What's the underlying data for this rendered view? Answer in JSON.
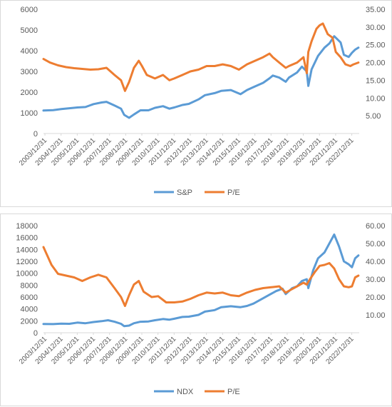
{
  "chart_data": [
    {
      "type": "line",
      "title": "",
      "ylim": [
        0,
        6000
      ],
      "y_ticks": [
        "0",
        "1000",
        "2000",
        "3000",
        "4000",
        "5000",
        "6000"
      ],
      "y2lim": [
        0,
        35
      ],
      "y2_ticks": [
        "5.00",
        "10.00",
        "15.00",
        "20.00",
        "25.00",
        "30.00",
        "35.00"
      ],
      "x_tick_labels": [
        "2003/12/31",
        "2004/12/31",
        "2005/12/31",
        "2006/12/31",
        "2007/12/31",
        "2008/12/31",
        "2009/12/31",
        "2010/12/31",
        "2011/12/31",
        "2012/12/31",
        "2013/12/31",
        "2014/12/31",
        "2015/12/31",
        "2016/12/31",
        "2017/12/31",
        "2018/12/31",
        "2019/12/31",
        "2020/12/31",
        "2021/12/31",
        "2022/12/31"
      ],
      "legend_position": "bottom",
      "grid": false,
      "series": [
        {
          "name": "S&P",
          "axis": "left",
          "color": "#5b9bd5",
          "x": [
            2003.9,
            2004.5,
            2005.0,
            2005.5,
            2006.0,
            2006.5,
            2007.0,
            2007.5,
            2007.8,
            2008.3,
            2008.7,
            2008.9,
            2009.2,
            2009.5,
            2009.9,
            2010.4,
            2010.8,
            2011.3,
            2011.7,
            2012.0,
            2012.5,
            2012.9,
            2013.5,
            2013.9,
            2014.5,
            2014.9,
            2015.5,
            2016.1,
            2016.5,
            2016.9,
            2017.5,
            2017.9,
            2018.1,
            2018.5,
            2018.9,
            2019.1,
            2019.6,
            2019.9,
            2020.2,
            2020.3,
            2020.5,
            2020.9,
            2021.3,
            2021.6,
            2021.9,
            2022.3,
            2022.5,
            2022.8,
            2023.0,
            2023.2,
            2023.4
          ],
          "y": [
            1112,
            1130,
            1180,
            1220,
            1260,
            1280,
            1420,
            1500,
            1530,
            1350,
            1200,
            900,
            760,
            920,
            1120,
            1120,
            1240,
            1320,
            1200,
            1260,
            1380,
            1430,
            1650,
            1850,
            1950,
            2060,
            2100,
            1900,
            2100,
            2240,
            2450,
            2670,
            2800,
            2700,
            2500,
            2700,
            2950,
            3230,
            3000,
            2300,
            3100,
            3750,
            4150,
            4350,
            4700,
            4400,
            3800,
            3700,
            3900,
            4050,
            4150
          ]
        },
        {
          "name": "P/E",
          "axis": "right",
          "color": "#ed7d31",
          "x": [
            2003.9,
            2004.3,
            2004.8,
            2005.3,
            2005.8,
            2006.3,
            2006.8,
            2007.3,
            2007.8,
            2008.3,
            2008.7,
            2008.95,
            2009.2,
            2009.5,
            2009.8,
            2010.0,
            2010.3,
            2010.8,
            2011.3,
            2011.7,
            2012.0,
            2012.5,
            2013.0,
            2013.5,
            2014.0,
            2014.5,
            2015.0,
            2015.5,
            2016.0,
            2016.5,
            2017.0,
            2017.5,
            2017.9,
            2018.1,
            2018.5,
            2018.9,
            2019.1,
            2019.6,
            2020.0,
            2020.2,
            2020.3,
            2020.5,
            2020.8,
            2021.0,
            2021.2,
            2021.5,
            2021.8,
            2022.0,
            2022.3,
            2022.6,
            2022.9,
            2023.1,
            2023.4
          ],
          "y": [
            21.0,
            20.0,
            19.2,
            18.7,
            18.4,
            18.2,
            18.0,
            18.1,
            18.5,
            16.5,
            15.0,
            12.0,
            14.5,
            18.5,
            20.5,
            19.0,
            16.5,
            15.5,
            16.5,
            15.0,
            15.5,
            16.5,
            17.5,
            18.0,
            19.0,
            19.0,
            19.5,
            19.0,
            18.0,
            19.5,
            20.5,
            21.5,
            22.5,
            21.5,
            20.0,
            18.5,
            19.0,
            20.0,
            21.5,
            17.0,
            23.0,
            26.0,
            29.5,
            30.5,
            31.0,
            28.0,
            27.0,
            23.0,
            21.5,
            19.5,
            19.0,
            19.5,
            20.0
          ]
        }
      ]
    },
    {
      "type": "line",
      "title": "",
      "ylim": [
        0,
        18000
      ],
      "y_ticks": [
        "0",
        "2000",
        "4000",
        "6000",
        "8000",
        "10000",
        "12000",
        "14000",
        "16000",
        "18000"
      ],
      "y2lim": [
        0,
        60
      ],
      "y2_ticks": [
        "10.00",
        "20.00",
        "30.00",
        "40.00",
        "50.00",
        "60.00"
      ],
      "x_tick_labels": [
        "2003/12/31",
        "2004/12/31",
        "2005/12/31",
        "2006/12/31",
        "2007/12/31",
        "2008/12/31",
        "2009/12/31",
        "2010/12/31",
        "2011/12/31",
        "2012/12/31",
        "2013/12/31",
        "2014/12/31",
        "2015/12/31",
        "2016/12/31",
        "2017/12/31",
        "2018/12/31",
        "2019/12/31",
        "2020/12/31",
        "2021/12/31",
        "2022/12/31"
      ],
      "legend_position": "bottom",
      "grid": false,
      "series": [
        {
          "name": "NDX",
          "axis": "left",
          "color": "#5b9bd5",
          "x": [
            2003.9,
            2004.5,
            2005.0,
            2005.5,
            2006.0,
            2006.5,
            2007.0,
            2007.5,
            2007.9,
            2008.3,
            2008.7,
            2008.9,
            2009.2,
            2009.5,
            2009.9,
            2010.4,
            2010.8,
            2011.3,
            2011.7,
            2012.0,
            2012.5,
            2012.9,
            2013.5,
            2013.9,
            2014.5,
            2014.9,
            2015.5,
            2016.1,
            2016.5,
            2016.9,
            2017.5,
            2017.9,
            2018.3,
            2018.7,
            2018.9,
            2019.3,
            2019.6,
            2019.9,
            2020.2,
            2020.3,
            2020.6,
            2020.9,
            2021.3,
            2021.6,
            2021.9,
            2022.2,
            2022.5,
            2022.8,
            2023.0,
            2023.2,
            2023.4
          ],
          "y": [
            1470,
            1450,
            1520,
            1500,
            1700,
            1600,
            1800,
            1950,
            2100,
            1850,
            1500,
            1100,
            1200,
            1600,
            1850,
            1900,
            2100,
            2300,
            2200,
            2350,
            2650,
            2700,
            3000,
            3550,
            3800,
            4300,
            4450,
            4300,
            4500,
            4900,
            5800,
            6400,
            7000,
            7400,
            6500,
            7500,
            7800,
            8700,
            9000,
            7500,
            10500,
            12500,
            13500,
            15000,
            16500,
            14500,
            12000,
            11500,
            11000,
            12500,
            13000
          ]
        },
        {
          "name": "P/E",
          "axis": "right",
          "color": "#ed7d31",
          "x": [
            2003.9,
            2004.1,
            2004.4,
            2004.8,
            2005.3,
            2005.8,
            2006.3,
            2006.8,
            2007.3,
            2007.8,
            2008.3,
            2008.7,
            2008.95,
            2009.2,
            2009.5,
            2009.8,
            2010.1,
            2010.6,
            2011.0,
            2011.5,
            2012.0,
            2012.5,
            2013.0,
            2013.5,
            2014.0,
            2014.5,
            2015.0,
            2015.5,
            2016.0,
            2016.5,
            2017.0,
            2017.5,
            2018.0,
            2018.5,
            2018.9,
            2019.2,
            2019.6,
            2020.0,
            2020.2,
            2020.4,
            2020.7,
            2021.0,
            2021.3,
            2021.6,
            2021.9,
            2022.2,
            2022.5,
            2022.8,
            2023.0,
            2023.2,
            2023.4
          ],
          "y": [
            48.0,
            44.0,
            38.0,
            33.0,
            32.0,
            31.0,
            29.0,
            31.0,
            32.5,
            31.0,
            25.0,
            20.0,
            15.0,
            21.0,
            27.0,
            29.0,
            23.0,
            20.0,
            20.5,
            17.0,
            17.0,
            17.5,
            19.0,
            21.0,
            22.5,
            22.0,
            22.5,
            21.0,
            20.5,
            22.5,
            24.0,
            25.0,
            25.5,
            26.0,
            22.5,
            24.0,
            26.0,
            28.0,
            27.0,
            30.0,
            34.0,
            37.5,
            38.0,
            39.0,
            36.0,
            30.0,
            26.0,
            25.5,
            26.0,
            31.0,
            32.0
          ]
        }
      ]
    }
  ]
}
